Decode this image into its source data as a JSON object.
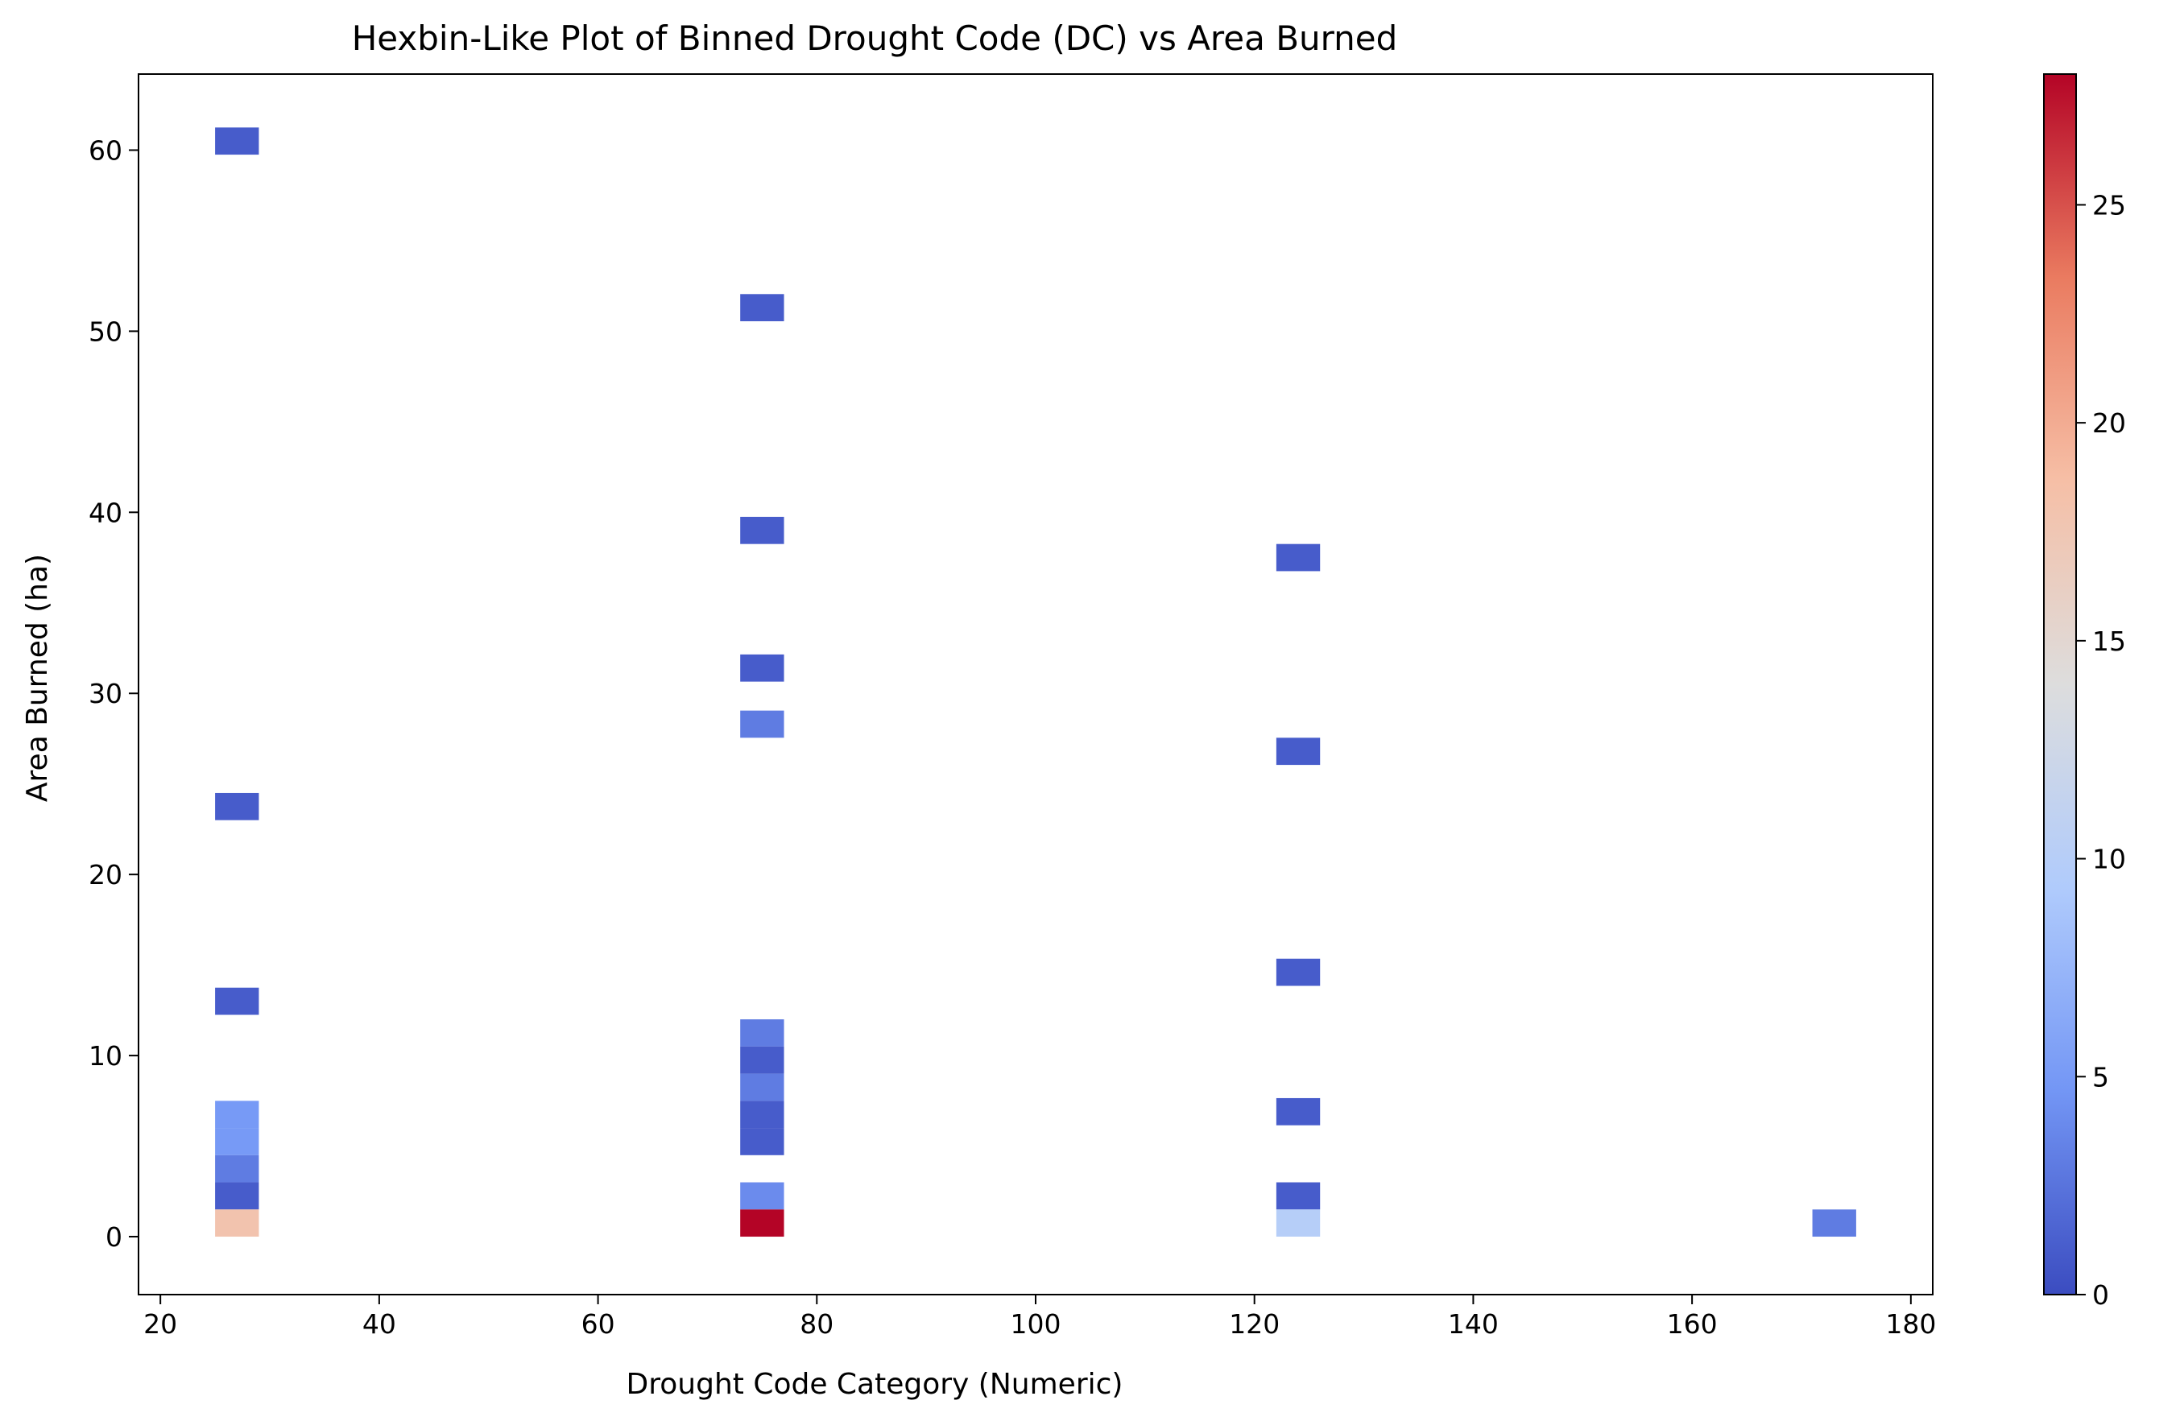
{
  "chart_data": {
    "type": "heatmap",
    "title": "Hexbin-Like Plot of Binned Drought Code (DC) vs Area Burned",
    "xlabel": "Drought Code Category (Numeric)",
    "ylabel": "Area Burned (ha)",
    "xlim": [
      18,
      182
    ],
    "ylim": [
      -3.2,
      64.2
    ],
    "x_ticks": [
      20,
      40,
      60,
      80,
      100,
      120,
      140,
      160,
      180
    ],
    "y_ticks": [
      0,
      10,
      20,
      30,
      40,
      50,
      60
    ],
    "grid": false,
    "bin_width": 4,
    "bin_height": 1.5,
    "colormap": "coolwarm",
    "colormap_stops": [
      "#3b4cc0",
      "#7396f5",
      "#b0cbfc",
      "#dddddd",
      "#f6bfa6",
      "#ea7b60",
      "#b40426"
    ],
    "colorbar": {
      "min": 0,
      "max": 28,
      "ticks": [
        0,
        5,
        10,
        15,
        20,
        25
      ]
    },
    "bins": [
      {
        "x": 27,
        "y": 60.5,
        "count": 1
      },
      {
        "x": 27,
        "y": 23.75,
        "count": 1
      },
      {
        "x": 27,
        "y": 13.0,
        "count": 1
      },
      {
        "x": 27,
        "y": 6.75,
        "count": 5
      },
      {
        "x": 27,
        "y": 5.25,
        "count": 5
      },
      {
        "x": 27,
        "y": 3.75,
        "count": 3
      },
      {
        "x": 27,
        "y": 2.25,
        "count": 1
      },
      {
        "x": 27,
        "y": 0.75,
        "count": 18
      },
      {
        "x": 75,
        "y": 51.3,
        "count": 1
      },
      {
        "x": 75,
        "y": 39.0,
        "count": 1
      },
      {
        "x": 75,
        "y": 31.4,
        "count": 1
      },
      {
        "x": 75,
        "y": 28.3,
        "count": 3
      },
      {
        "x": 75,
        "y": 11.25,
        "count": 3
      },
      {
        "x": 75,
        "y": 9.75,
        "count": 1
      },
      {
        "x": 75,
        "y": 8.25,
        "count": 3
      },
      {
        "x": 75,
        "y": 6.75,
        "count": 1
      },
      {
        "x": 75,
        "y": 5.25,
        "count": 1
      },
      {
        "x": 75,
        "y": 2.25,
        "count": 4
      },
      {
        "x": 75,
        "y": 0.75,
        "count": 28
      },
      {
        "x": 124,
        "y": 37.5,
        "count": 1
      },
      {
        "x": 124,
        "y": 26.8,
        "count": 1
      },
      {
        "x": 124,
        "y": 14.6,
        "count": 1
      },
      {
        "x": 124,
        "y": 6.9,
        "count": 1
      },
      {
        "x": 124,
        "y": 2.25,
        "count": 1
      },
      {
        "x": 124,
        "y": 0.75,
        "count": 10
      },
      {
        "x": 173,
        "y": 0.75,
        "count": 3
      }
    ]
  }
}
